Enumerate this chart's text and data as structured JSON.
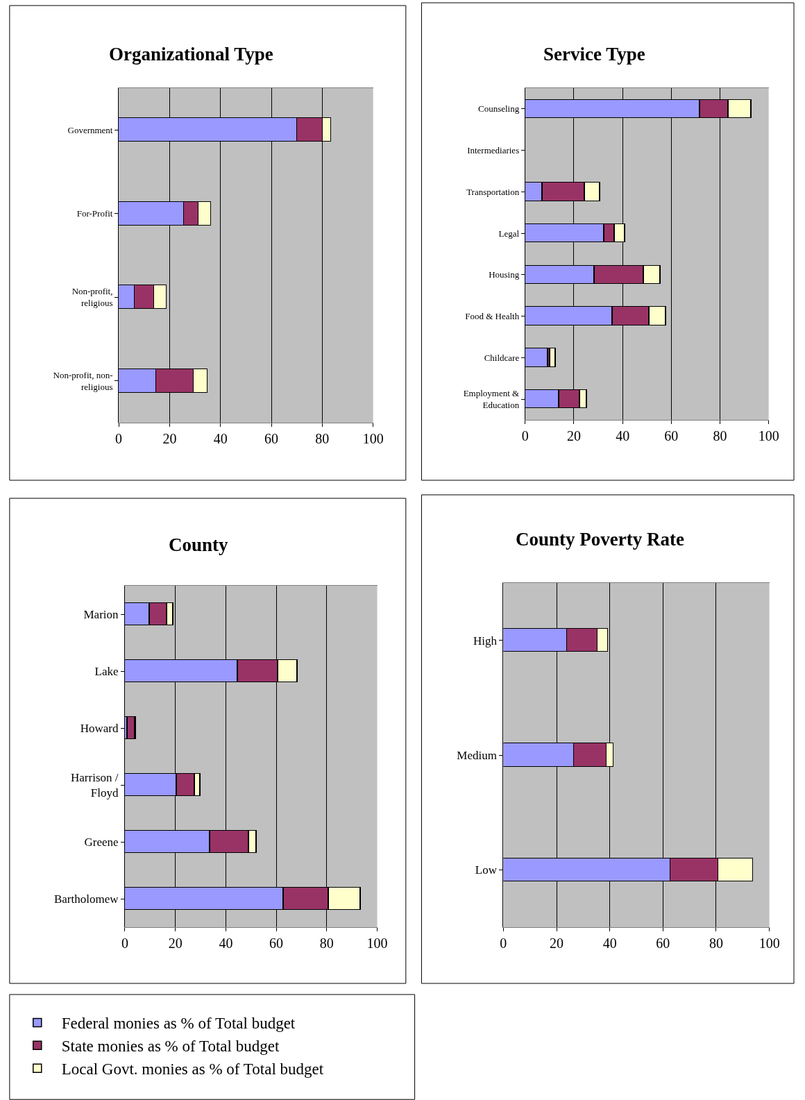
{
  "chart_data": [
    {
      "type": "bar",
      "orientation": "horizontal",
      "stacked": true,
      "title": "Organizational Type",
      "categories": [
        "Government",
        "For-Profit",
        "Non-profit, religious",
        "Non-profit, non-religious"
      ],
      "series": [
        {
          "name": "Federal monies as % of Total budget",
          "color": "#9999ff",
          "values": [
            70.1,
            25.7,
            6.3,
            14.8
          ]
        },
        {
          "name": "State monies as % of Total budget",
          "color": "#993366",
          "values": [
            10.2,
            5.8,
            7.6,
            14.6
          ]
        },
        {
          "name": "Local Govt. monies as % of Total budget",
          "color": "#ffffcc",
          "values": [
            3.3,
            4.9,
            4.8,
            5.4
          ]
        }
      ],
      "xlim": [
        0,
        100
      ],
      "xticks": [
        0,
        20,
        40,
        60,
        80,
        100
      ],
      "grid": "x",
      "legend": "bottom"
    },
    {
      "type": "bar",
      "orientation": "horizontal",
      "stacked": true,
      "title": "Service Type",
      "categories": [
        "Counseling",
        "Intermediaries",
        "Transportation",
        "Legal",
        "Housing",
        "Food & Health",
        "Childcare",
        "Employment & Education"
      ],
      "series": [
        {
          "name": "Federal monies as % of Total budget",
          "color": "#9999ff",
          "values": [
            71.8,
            null,
            7.2,
            32.4,
            28.5,
            35.9,
            9.4,
            13.9
          ]
        },
        {
          "name": "State monies as % of Total budget",
          "color": "#993366",
          "values": [
            11.8,
            null,
            17.4,
            4.5,
            20.3,
            15.1,
            1.0,
            8.6
          ]
        },
        {
          "name": "Local Govt. monies as % of Total budget",
          "color": "#ffffcc",
          "values": [
            9.2,
            null,
            6.2,
            4.1,
            6.7,
            6.8,
            2.0,
            2.8
          ]
        }
      ],
      "xlim": [
        0,
        100
      ],
      "xticks": [
        0,
        20,
        40,
        60,
        80,
        100
      ],
      "grid": "x",
      "legend": "bottom"
    },
    {
      "type": "bar",
      "orientation": "horizontal",
      "stacked": true,
      "title": "County",
      "categories": [
        "Marion",
        "Lake",
        "Howard",
        "Harrison / Floyd",
        "Greene",
        "Bartholomew"
      ],
      "series": [
        {
          "name": "Federal monies as % of Total budget",
          "color": "#9999ff",
          "values": [
            9.9,
            44.7,
            1.1,
            20.7,
            33.8,
            63.0
          ]
        },
        {
          "name": "State monies as % of Total budget",
          "color": "#993366",
          "values": [
            7.0,
            16.2,
            3.0,
            7.1,
            15.3,
            17.9
          ]
        },
        {
          "name": "Local Govt. monies as % of Total budget",
          "color": "#ffffcc",
          "values": [
            2.4,
            7.6,
            0.3,
            2.2,
            3.1,
            12.6
          ]
        }
      ],
      "xlim": [
        0,
        100
      ],
      "xticks": [
        0,
        20,
        40,
        60,
        80,
        100
      ],
      "grid": "x",
      "legend": "bottom"
    },
    {
      "type": "bar",
      "orientation": "horizontal",
      "stacked": true,
      "title": "County Poverty Rate",
      "categories": [
        "High",
        "Medium",
        "Low"
      ],
      "series": [
        {
          "name": "Federal monies as % of Total budget",
          "color": "#9999ff",
          "values": [
            24.0,
            26.6,
            63.0
          ]
        },
        {
          "name": "State monies as % of Total budget",
          "color": "#993366",
          "values": [
            11.4,
            12.4,
            18.0
          ]
        },
        {
          "name": "Local Govt. monies as % of Total budget",
          "color": "#ffffcc",
          "values": [
            4.1,
            2.5,
            12.8
          ]
        }
      ],
      "xlim": [
        0,
        100
      ],
      "xticks": [
        0,
        20,
        40,
        60,
        80,
        100
      ],
      "grid": "x",
      "legend": "bottom"
    }
  ]
}
